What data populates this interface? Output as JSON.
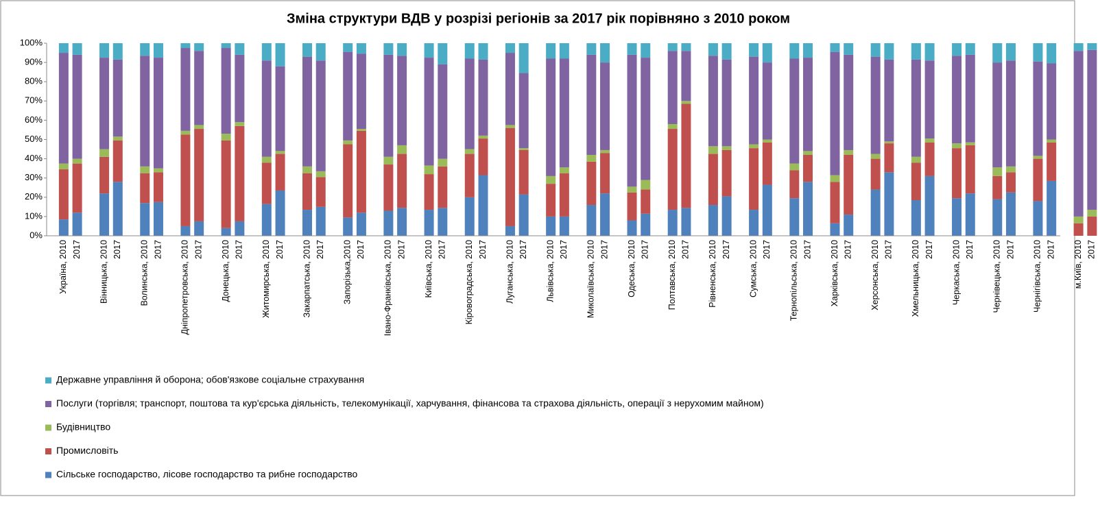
{
  "chart_data": {
    "type": "stacked_bar",
    "title": "Зміна структури ВДВ у розрізі регіонів за 2017 рік порівняно з 2010 роком",
    "categories": [
      "Україна, 2010",
      "2017",
      "Вінницька, 2010",
      "2017",
      "Волинська, 2010",
      "2017",
      "Дніпропетровська, 2010",
      "2017",
      "Донецька, 2010",
      "2017",
      "Житомирська, 2010",
      "2017",
      "Закарпатська, 2010",
      "2017",
      "Запорізька,2010",
      "2017",
      "Івано-Франківська, 2010",
      "2017",
      "Київська, 2010",
      "2017",
      "Кіровоградська, 2010",
      "2017",
      "Луганська, 2010",
      "2017",
      "Львівська, 2010",
      "2017",
      "Миколаївська, 2010",
      "2017",
      "Одеська, 2010",
      "2017",
      "Полтавська, 2010",
      "2017",
      "Рівненська, 2010",
      "2017",
      "Сумська, 2010",
      "2017",
      "Тернопільська, 2010",
      "2017",
      "Харківська, 2010",
      "2017",
      "Херсонська, 2010",
      "2017",
      "Хмельницька, 2010",
      "2017",
      "Черкаська, 2010",
      "2017",
      "Чернівецька, 2010",
      "2017",
      "Чернігівська, 2010",
      "2017",
      "м.Київ, 2010",
      "2017"
    ],
    "series": [
      {
        "name": "Сільське господарство, лісове господарство та рибне господарство",
        "color": "#4f81bd",
        "values": [
          8.5,
          12,
          22,
          28,
          17,
          17.5,
          5,
          7.5,
          4,
          7.5,
          16.5,
          23.5,
          13.5,
          15,
          9.5,
          12,
          13,
          14.5,
          13.5,
          14.5,
          20,
          31.5,
          5,
          21.5,
          10,
          10,
          16,
          22,
          8,
          11.5,
          13.5,
          14.5,
          16,
          20.5,
          13.5,
          26.5,
          19.5,
          28,
          6.5,
          11,
          24,
          33,
          18.5,
          31,
          19.5,
          22,
          19,
          22.5,
          18,
          28.5,
          0,
          0
        ]
      },
      {
        "name": "Промисловіть",
        "color": "#c0504d",
        "values": [
          26,
          25.5,
          19,
          21.5,
          15.5,
          15.5,
          47.5,
          48,
          45.5,
          49.5,
          21.5,
          19,
          19,
          15.5,
          38,
          42.5,
          24,
          28,
          18.5,
          21.5,
          22.5,
          19,
          51,
          23,
          17,
          22.5,
          22.5,
          21,
          14.5,
          12.5,
          42,
          54,
          26.5,
          24,
          32,
          22,
          14.5,
          14,
          21.5,
          31,
          16,
          15,
          19.5,
          17.5,
          26,
          25,
          12,
          10.5,
          22,
          20,
          6.5,
          10
        ]
      },
      {
        "name": "Будівництво",
        "color": "#9bbb59",
        "values": [
          3,
          2.5,
          4,
          2,
          3.5,
          2,
          2,
          2,
          3.5,
          2,
          3,
          1.5,
          3.5,
          3,
          2,
          1,
          4,
          4.5,
          4.5,
          4,
          2.5,
          1.5,
          1.5,
          1,
          4,
          3,
          3.5,
          1.5,
          3,
          5,
          2.5,
          1.5,
          4,
          2,
          2,
          1.5,
          3.5,
          2,
          3.5,
          2.5,
          2.5,
          1,
          3,
          2,
          2.5,
          1.5,
          4.5,
          3,
          1.5,
          1.5,
          3.5,
          3.5
        ]
      },
      {
        "name": "Послуги (торгівля; транспорт, поштова та кур'єрська діяльність, телекомунікації, харчування, фінансова та страхова діяльність, операції з нерухомим майном)",
        "color": "#8064a2",
        "values": [
          57.5,
          54,
          47.5,
          40,
          57.5,
          57.5,
          43,
          38.5,
          44.5,
          35,
          50,
          44,
          57,
          57.5,
          46,
          39,
          53,
          46.5,
          56,
          49,
          47,
          39.5,
          37.5,
          39,
          61,
          56.5,
          52,
          45.5,
          68.5,
          63.5,
          38,
          26,
          47,
          45,
          45.5,
          40,
          54.5,
          48.5,
          64,
          49.5,
          50.5,
          42.5,
          50.5,
          40.5,
          45.5,
          45.5,
          54.5,
          55,
          49,
          39.5,
          86,
          83
        ]
      },
      {
        "name": "Державне управління й оборона; обов'язкове соціальне страхування",
        "color": "#4bacc6",
        "values": [
          5,
          6,
          7.5,
          8.5,
          6.5,
          7.5,
          2.5,
          4,
          2.5,
          6,
          9,
          12,
          7,
          9,
          4.5,
          5.5,
          6,
          6.5,
          7.5,
          11,
          8,
          8.5,
          5,
          15.5,
          8,
          8,
          6,
          10,
          6,
          7.5,
          4,
          4,
          6.5,
          8.5,
          7,
          10,
          8,
          7.5,
          4.5,
          6,
          7,
          8.5,
          8.5,
          9,
          6.5,
          6,
          10,
          9,
          9.5,
          10.5,
          4,
          3.5
        ]
      }
    ],
    "ylim": [
      0,
      100
    ],
    "yticks": [
      {
        "value": 0,
        "label": "0%"
      },
      {
        "value": 10,
        "label": "10%"
      },
      {
        "value": 20,
        "label": "20%"
      },
      {
        "value": 30,
        "label": "30%"
      },
      {
        "value": 40,
        "label": "40%"
      },
      {
        "value": 50,
        "label": "50%"
      },
      {
        "value": 60,
        "label": "60%"
      },
      {
        "value": 70,
        "label": "70%"
      },
      {
        "value": 80,
        "label": "80%"
      },
      {
        "value": 90,
        "label": "90%"
      },
      {
        "value": 100,
        "label": "100%"
      }
    ],
    "grid": false
  }
}
